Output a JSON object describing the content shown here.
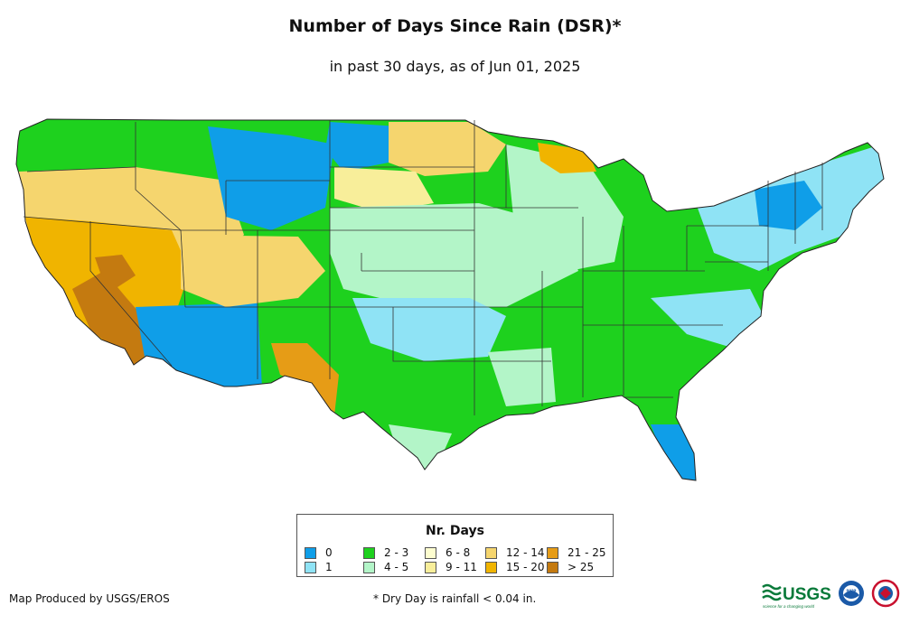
{
  "title": "Number of Days Since Rain (DSR)*",
  "subtitle": "in past 30 days, as of Jun 01, 2025",
  "legend": {
    "title": "Nr. Days",
    "items": [
      {
        "label": "0",
        "color": "#0f9ee8"
      },
      {
        "label": "1",
        "color": "#8fe3f5"
      },
      {
        "label": "2 - 3",
        "color": "#1ed11e"
      },
      {
        "label": "4 - 5",
        "color": "#b3f5c8"
      },
      {
        "label": "6 - 8",
        "color": "#fdfdcf"
      },
      {
        "label": "9 - 11",
        "color": "#f8ee9a"
      },
      {
        "label": "12 - 14",
        "color": "#f5d56e"
      },
      {
        "label": "15 - 20",
        "color": "#f0b400"
      },
      {
        "label": "21 - 25",
        "color": "#e69c16"
      },
      {
        "label": "> 25",
        "color": "#c47a10"
      }
    ]
  },
  "footer": {
    "producer": "Map Produced by USGS/EROS",
    "note": "* Dry Day is rainfall < 0.04 in."
  },
  "logos": {
    "usgs": "USGS",
    "usgs_tagline": "science for a changing world",
    "noaa": "noaa"
  }
}
